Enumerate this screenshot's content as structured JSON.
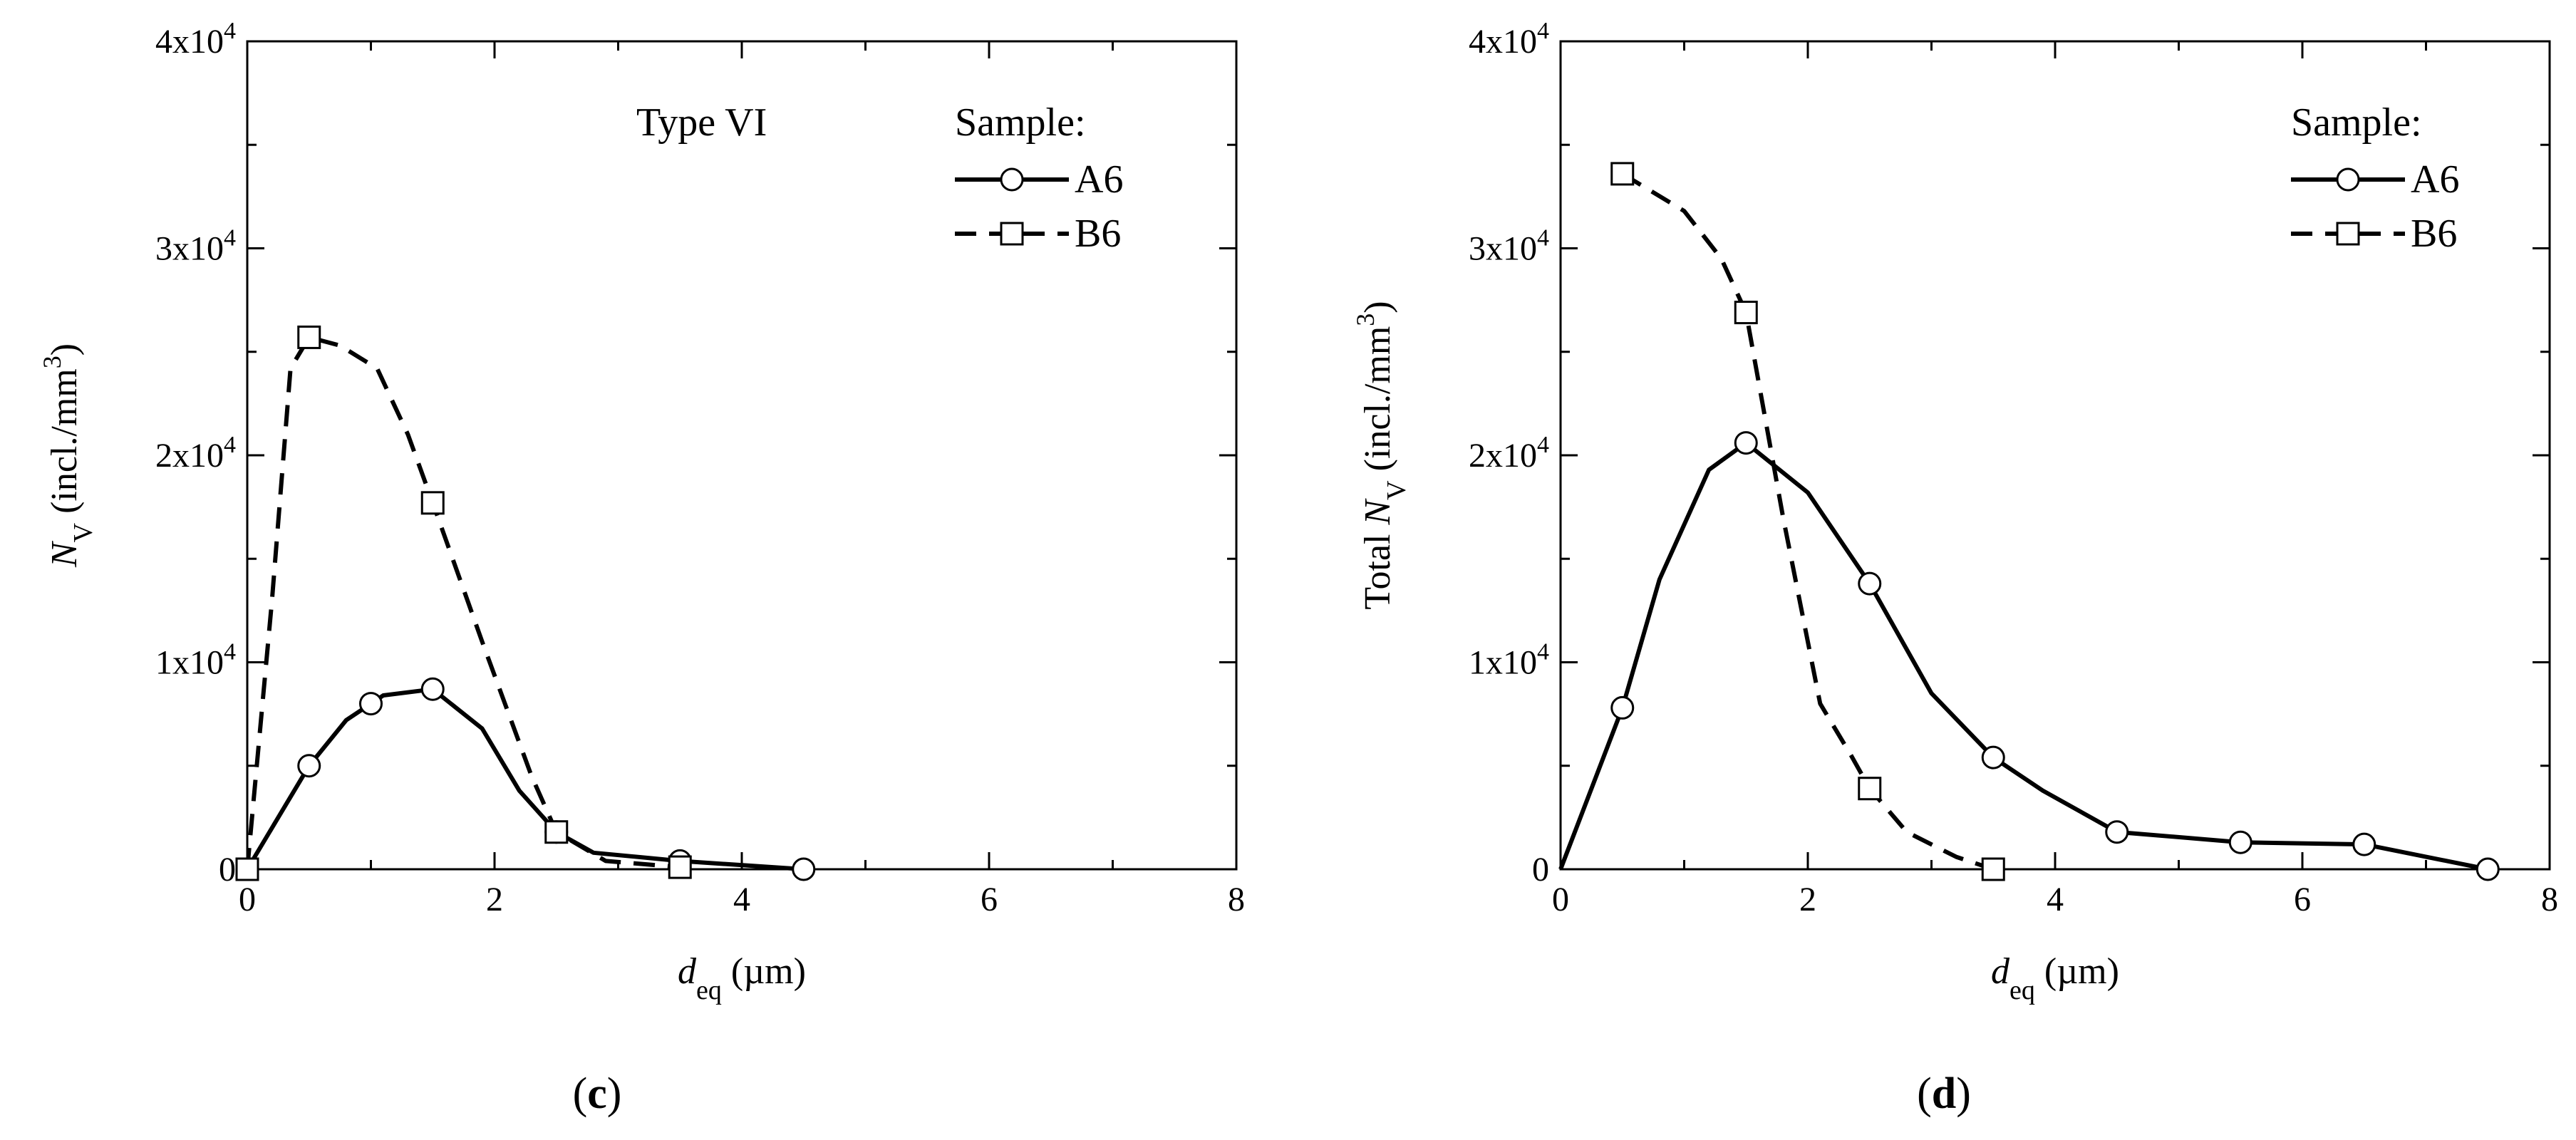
{
  "chart_data": [
    {
      "type": "line",
      "panel_label": "(c)",
      "annotation": "Type VI",
      "xlabel": {
        "main": "d",
        "sub": "eq",
        "unit": "(µm)"
      },
      "ylabel": {
        "main": "N",
        "sub": "V",
        "unit_prefix": "(incl./mm",
        "unit_sup": "3",
        "unit_suffix": ")"
      },
      "xlim": [
        0,
        8
      ],
      "ylim": [
        0,
        40000
      ],
      "xticks": [
        0,
        2,
        4,
        6,
        8
      ],
      "xtick_labels": [
        "0",
        "2",
        "4",
        "6",
        "8"
      ],
      "yticks": [
        0,
        10000,
        20000,
        30000,
        40000
      ],
      "ytick_labels": [
        {
          "base": "0",
          "exp": ""
        },
        {
          "base": "1x10",
          "exp": "4"
        },
        {
          "base": "2x10",
          "exp": "4"
        },
        {
          "base": "3x10",
          "exp": "4"
        },
        {
          "base": "4x10",
          "exp": "4"
        }
      ],
      "legend": {
        "title": "Sample:",
        "position": "top-right"
      },
      "series": [
        {
          "name": "A6",
          "style": "solid",
          "marker": "circle",
          "x": [
            0,
            0.5,
            1.0,
            1.5,
            2.5,
            3.5,
            4.5
          ],
          "y": [
            0,
            5000,
            8000,
            8700,
            1800,
            400,
            0
          ],
          "curve_x": [
            0,
            0.5,
            0.8,
            1.1,
            1.5,
            1.9,
            2.2,
            2.5,
            2.8,
            3.5,
            4.5
          ],
          "curve_y": [
            0,
            5000,
            7200,
            8400,
            8700,
            6800,
            3800,
            1800,
            800,
            400,
            0
          ]
        },
        {
          "name": "B6",
          "style": "dashed",
          "marker": "square",
          "x": [
            0,
            0.5,
            1.5,
            2.5,
            3.5
          ],
          "y": [
            0,
            25700,
            17700,
            1800,
            100
          ],
          "curve_x": [
            0,
            0.2,
            0.35,
            0.5,
            0.75,
            1.05,
            1.3,
            1.5,
            1.9,
            2.3,
            2.5,
            2.9,
            3.5
          ],
          "curve_y": [
            0,
            13000,
            24200,
            25700,
            25300,
            24200,
            21000,
            17700,
            11000,
            4500,
            1800,
            400,
            100
          ]
        }
      ]
    },
    {
      "type": "line",
      "panel_label": "(d)",
      "xlabel": {
        "main": "d",
        "sub": "eq",
        "unit": "(µm)"
      },
      "ylabel": {
        "prefix": "Total ",
        "main": "N",
        "sub": "V",
        "unit_prefix": "(incl./mm",
        "unit_sup": "3",
        "unit_suffix": ")"
      },
      "xlim": [
        0,
        8
      ],
      "ylim": [
        0,
        40000
      ],
      "xticks": [
        0,
        2,
        4,
        6,
        8
      ],
      "xtick_labels": [
        "0",
        "2",
        "4",
        "6",
        "8"
      ],
      "yticks": [
        0,
        10000,
        20000,
        30000,
        40000
      ],
      "ytick_labels": [
        {
          "base": "0",
          "exp": ""
        },
        {
          "base": "1x10",
          "exp": "4"
        },
        {
          "base": "2x10",
          "exp": "4"
        },
        {
          "base": "3x10",
          "exp": "4"
        },
        {
          "base": "4x10",
          "exp": "4"
        }
      ],
      "legend": {
        "title": "Sample:",
        "position": "top-right"
      },
      "series": [
        {
          "name": "A6",
          "style": "solid",
          "marker": "circle",
          "x": [
            0.5,
            1.5,
            2.5,
            3.5,
            4.5,
            5.5,
            6.5,
            7.5
          ],
          "y": [
            7800,
            20600,
            13800,
            5400,
            1800,
            1300,
            1200,
            0
          ],
          "curve_x": [
            0,
            0.5,
            0.8,
            1.2,
            1.5,
            2.0,
            2.5,
            3.0,
            3.5,
            3.9,
            4.5,
            5.5,
            6.5,
            7.5
          ],
          "curve_y": [
            0,
            7800,
            14000,
            19300,
            20600,
            18200,
            13800,
            8500,
            5400,
            3800,
            1800,
            1300,
            1200,
            0
          ]
        },
        {
          "name": "B6",
          "style": "dashed",
          "marker": "square",
          "x": [
            0.5,
            1.5,
            2.5,
            3.5
          ],
          "y": [
            33600,
            26900,
            3900,
            0
          ],
          "curve_x": [
            0.5,
            1.0,
            1.3,
            1.5,
            1.8,
            2.1,
            2.35,
            2.5,
            2.8,
            3.2,
            3.5
          ],
          "curve_y": [
            33600,
            31800,
            29500,
            26900,
            17000,
            8000,
            5500,
            3900,
            1800,
            600,
            0
          ]
        }
      ]
    }
  ]
}
